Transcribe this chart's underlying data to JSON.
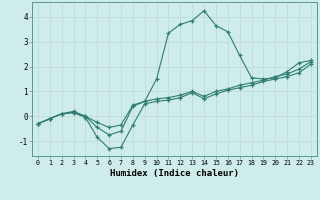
{
  "xlabel": "Humidex (Indice chaleur)",
  "background_color": "#ceecea",
  "grid_color": "#c0dbd8",
  "line_color": "#2e7d72",
  "xlim": [
    -0.5,
    23.5
  ],
  "ylim": [
    -1.6,
    4.6
  ],
  "xticks": [
    0,
    1,
    2,
    3,
    4,
    5,
    6,
    7,
    8,
    9,
    10,
    11,
    12,
    13,
    14,
    15,
    16,
    17,
    18,
    19,
    20,
    21,
    22,
    23
  ],
  "yticks": [
    -1,
    0,
    1,
    2,
    3,
    4
  ],
  "line1_x": [
    0,
    1,
    2,
    3,
    4,
    5,
    6,
    7,
    8,
    9,
    10,
    11,
    12,
    13,
    14,
    15,
    16,
    17,
    18,
    19,
    20,
    21,
    22,
    23
  ],
  "line1_y": [
    -0.3,
    -0.1,
    0.1,
    0.15,
    -0.05,
    -0.85,
    -1.3,
    -1.25,
    -0.35,
    0.5,
    0.6,
    0.65,
    0.75,
    0.95,
    0.7,
    0.9,
    1.05,
    1.15,
    1.25,
    1.4,
    1.5,
    1.6,
    1.75,
    2.1
  ],
  "line2_x": [
    0,
    1,
    2,
    3,
    4,
    5,
    6,
    7,
    8,
    9,
    10,
    11,
    12,
    13,
    14,
    15,
    16,
    17,
    18,
    19,
    20,
    21,
    22,
    23
  ],
  "line2_y": [
    -0.3,
    -0.1,
    0.1,
    0.15,
    0.0,
    -0.45,
    -0.75,
    -0.6,
    0.4,
    0.6,
    1.5,
    3.35,
    3.7,
    3.85,
    4.25,
    3.65,
    3.4,
    2.45,
    1.55,
    1.5,
    1.55,
    1.8,
    2.15,
    2.25
  ],
  "line3_x": [
    0,
    1,
    2,
    3,
    4,
    5,
    6,
    7,
    8,
    9,
    10,
    11,
    12,
    13,
    14,
    15,
    16,
    17,
    18,
    19,
    20,
    21,
    22,
    23
  ],
  "line3_y": [
    -0.3,
    -0.1,
    0.1,
    0.2,
    0.0,
    -0.25,
    -0.45,
    -0.35,
    0.45,
    0.6,
    0.7,
    0.75,
    0.85,
    1.0,
    0.8,
    1.0,
    1.1,
    1.25,
    1.35,
    1.45,
    1.6,
    1.7,
    1.9,
    2.2
  ]
}
